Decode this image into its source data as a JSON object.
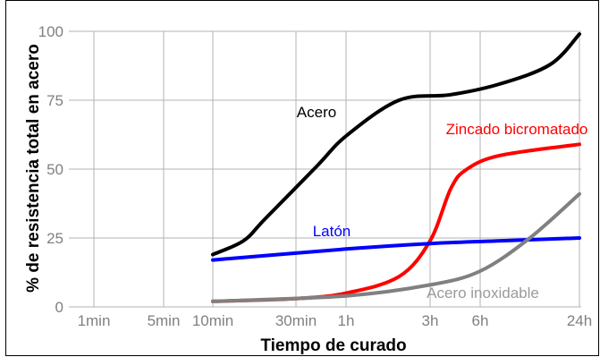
{
  "chart_data": {
    "type": "line",
    "xlabel": "Tiempo de curado",
    "ylabel": "% de resistencia total en acero",
    "x_ticks": [
      "1min",
      "5min",
      "10min",
      "30min",
      "1h",
      "3h",
      "6h",
      "24h"
    ],
    "x_scale": "log",
    "y_ticks": [
      0,
      25,
      50,
      75,
      100
    ],
    "ylim": [
      0,
      100
    ],
    "grid": true,
    "series": [
      {
        "name": "Acero",
        "color": "#000000",
        "points": [
          [
            "10min",
            19
          ],
          [
            "15min",
            24
          ],
          [
            "20min",
            32
          ],
          [
            "40min",
            51
          ],
          [
            "60min",
            62
          ],
          [
            "120min",
            75
          ],
          [
            "240min",
            77
          ],
          [
            "480min",
            81
          ],
          [
            "960min",
            88
          ],
          [
            "1440min",
            99
          ]
        ]
      },
      {
        "name": "Zincado bicromatado",
        "color": "#ff0000",
        "points": [
          [
            "10min",
            2
          ],
          [
            "30min",
            3
          ],
          [
            "60min",
            5
          ],
          [
            "120min",
            11
          ],
          [
            "180min",
            24
          ],
          [
            "240min",
            43
          ],
          [
            "300min",
            50
          ],
          [
            "480min",
            55
          ],
          [
            "1440min",
            59
          ]
        ]
      },
      {
        "name": "Latón",
        "color": "#0000ff",
        "points": [
          [
            "10min",
            17
          ],
          [
            "60min",
            21
          ],
          [
            "180min",
            23
          ],
          [
            "480min",
            24
          ],
          [
            "1440min",
            25
          ]
        ]
      },
      {
        "name": "Acero inoxidable",
        "color": "#808080",
        "points": [
          [
            "10min",
            2
          ],
          [
            "60min",
            4
          ],
          [
            "180min",
            8
          ],
          [
            "360min",
            13
          ],
          [
            "720min",
            25
          ],
          [
            "1440min",
            41
          ]
        ]
      }
    ]
  }
}
